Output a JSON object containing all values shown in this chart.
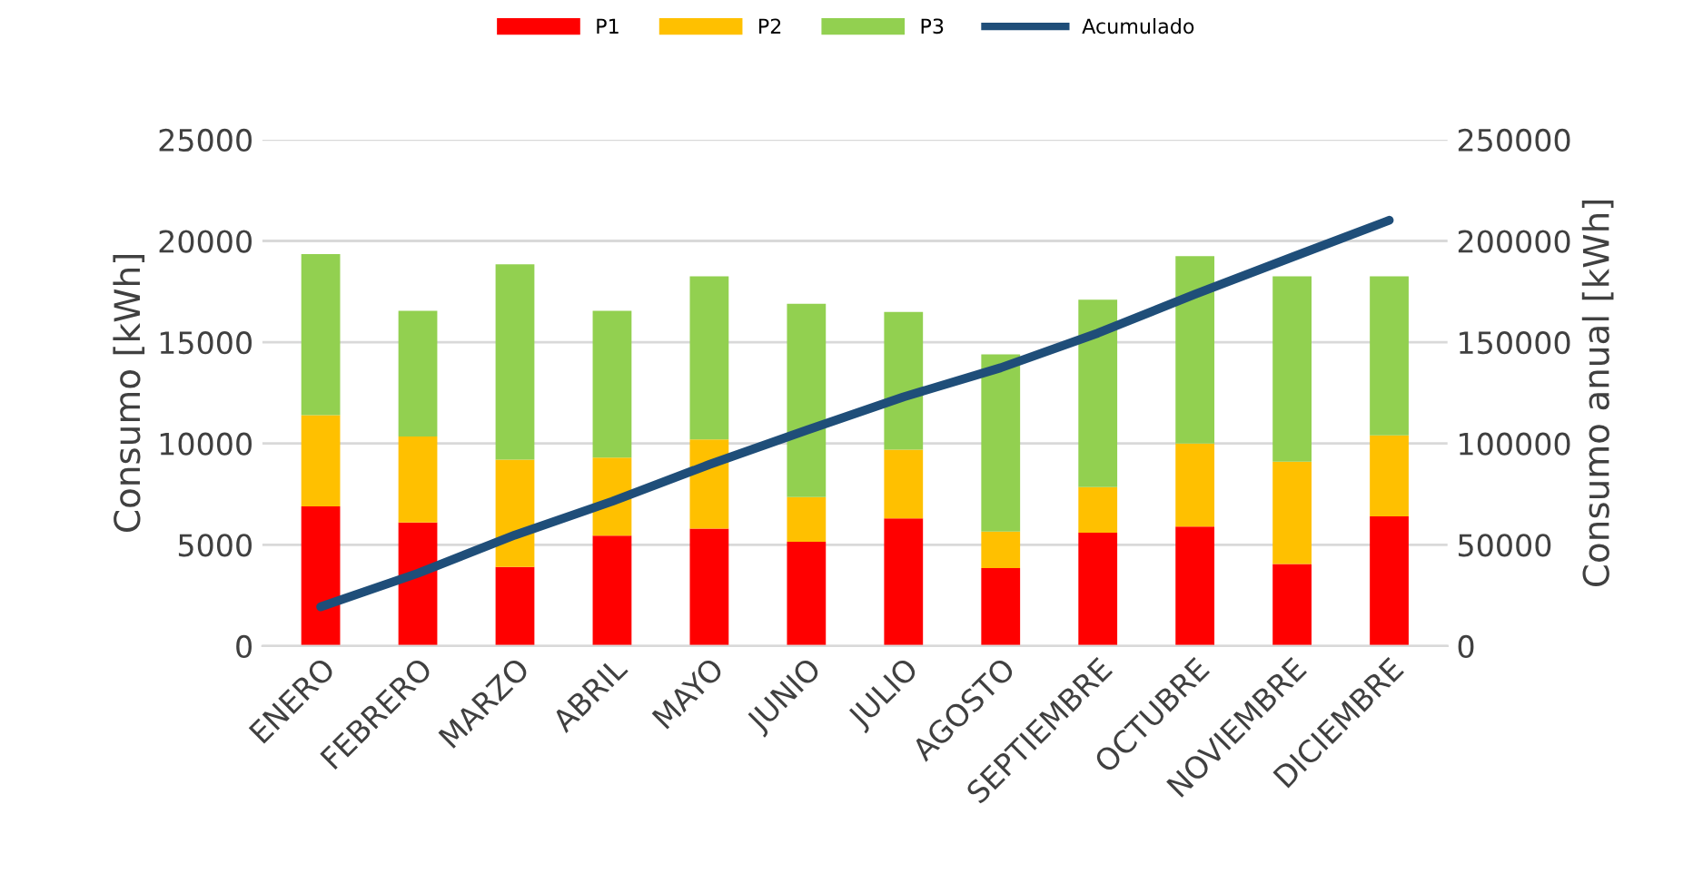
{
  "chart_data": {
    "type": "bar",
    "stacked": true,
    "ylabel": "Consumo [kWh]",
    "y2label": "Consumo anual [kWh]",
    "categories": [
      "ENERO",
      "FEBRERO",
      "MARZO",
      "ABRIL",
      "MAYO",
      "JUNIO",
      "JULIO",
      "AGOSTO",
      "SEPTIEMBRE",
      "OCTUBRE",
      "NOVIEMBRE",
      "DICIEMBRE"
    ],
    "series": [
      {
        "name": "P1",
        "color": "#ff0000",
        "values": [
          6900,
          6100,
          3900,
          5450,
          5800,
          5150,
          6300,
          3850,
          5600,
          5900,
          4050,
          6400
        ]
      },
      {
        "name": "P2",
        "color": "#ffc000",
        "values": [
          4500,
          4250,
          5300,
          3850,
          4400,
          2200,
          3400,
          1800,
          2250,
          4100,
          5050,
          4000
        ]
      },
      {
        "name": "P3",
        "color": "#92d050",
        "values": [
          7950,
          6200,
          9650,
          7250,
          8050,
          9550,
          6800,
          8750,
          9250,
          9250,
          9150,
          7850
        ]
      },
      {
        "name": "Acumulado",
        "type": "line",
        "axis": "y2",
        "color": "#1f4e79",
        "values": [
          19400,
          35900,
          54800,
          71400,
          89600,
          106500,
          123000,
          137400,
          154500,
          173700,
          192000,
          210200
        ]
      }
    ],
    "ylim": [
      0,
      25000
    ],
    "yticks": [
      0,
      5000,
      10000,
      15000,
      20000,
      25000
    ],
    "y2lim": [
      0,
      250000
    ],
    "y2ticks": [
      0,
      50000,
      100000,
      150000,
      200000,
      250000
    ],
    "grid": "y",
    "legend": "top"
  }
}
